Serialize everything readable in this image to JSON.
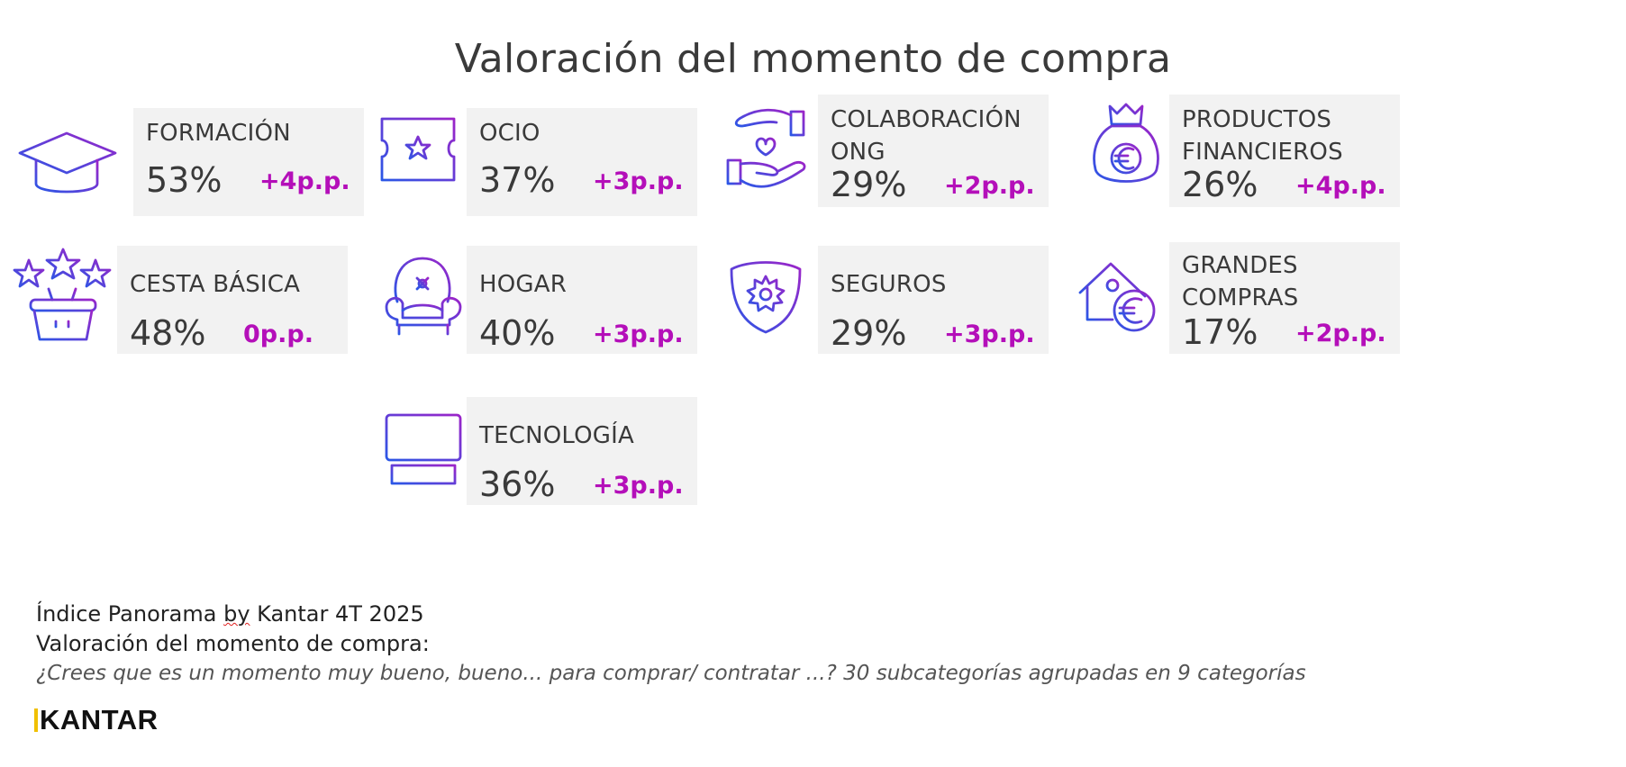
{
  "title": "Valoración del momento de compra",
  "colors": {
    "card_background": "#f2f2f2",
    "change_text": "#b40fb9",
    "icon_gradient_start": "#2a57e6",
    "icon_gradient_end": "#9c24c8"
  },
  "categories": [
    {
      "label": "FORMACIÓN",
      "value": "53%",
      "change": "+4p.p.",
      "icon": "graduation-cap-icon"
    },
    {
      "label": "OCIO",
      "value": "37%",
      "change": "+3p.p.",
      "icon": "ticket-star-icon"
    },
    {
      "label": "COLABORACIÓN\nONG",
      "value": "29%",
      "change": "+2p.p.",
      "icon": "hands-heart-icon"
    },
    {
      "label": "PRODUCTOS\nFINANCIEROS",
      "value": "26%",
      "change": "+4p.p.",
      "icon": "money-bag-euro-icon"
    },
    {
      "label": "CESTA BÁSICA",
      "value": "48%",
      "change": "0p.p.",
      "icon": "basket-stars-icon"
    },
    {
      "label": "HOGAR",
      "value": "40%",
      "change": "+3p.p.",
      "icon": "armchair-icon"
    },
    {
      "label": "SEGUROS",
      "value": "29%",
      "change": "+3p.p.",
      "icon": "shield-gear-icon"
    },
    {
      "label": "GRANDES\nCOMPRAS",
      "value": "17%",
      "change": "+2p.p.",
      "icon": "house-euro-icon"
    },
    {
      "label": "TECNOLOGÍA",
      "value": "36%",
      "change": "+3p.p.",
      "icon": "laptop-icon"
    }
  ],
  "footer": {
    "line1_pre": "Índice Panorama ",
    "line1_by": "by",
    "line1_post": " Kantar 4T 2025",
    "line2": "Valoración del momento de compra:",
    "line3": "¿Crees que es un momento muy bueno, bueno...  para comprar/ contratar ...? 30 subcategorías agrupadas en 9 categorías"
  },
  "logo": "KANTAR"
}
